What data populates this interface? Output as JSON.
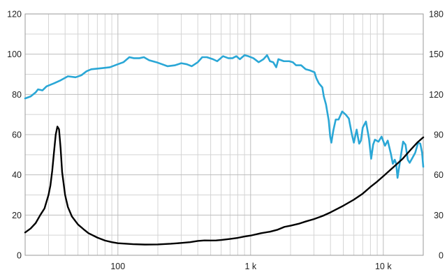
{
  "chart_data": {
    "type": "line",
    "title": "",
    "xlabel": "",
    "ylabel": "",
    "x_scale": "log",
    "xlim": [
      20,
      20000
    ],
    "ylim_left": [
      0,
      120
    ],
    "ylim_right": [
      0,
      180
    ],
    "grid": true,
    "legend": "none",
    "x_ticks": [
      {
        "value": 100,
        "label": "100"
      },
      {
        "value": 1000,
        "label": "1 k"
      },
      {
        "value": 10000,
        "label": "10 k"
      }
    ],
    "y_left_ticks": [
      {
        "value": 0,
        "label": "0"
      },
      {
        "value": 20,
        "label": "20"
      },
      {
        "value": 40,
        "label": "40"
      },
      {
        "value": 60,
        "label": "60"
      },
      {
        "value": 80,
        "label": "80"
      },
      {
        "value": 100,
        "label": "100"
      },
      {
        "value": 120,
        "label": "120"
      }
    ],
    "y_right_ticks": [
      {
        "value": 0,
        "label": "0"
      },
      {
        "value": 30,
        "label": "30"
      },
      {
        "value": 60,
        "label": "60"
      },
      {
        "value": 90,
        "label": "90"
      },
      {
        "value": 120,
        "label": "120"
      },
      {
        "value": 150,
        "label": "150"
      },
      {
        "value": 180,
        "label": "180"
      }
    ],
    "series": [
      {
        "axis": "left",
        "color": "#2aa7d6",
        "points": [
          [
            20,
            78
          ],
          [
            22,
            79
          ],
          [
            24,
            81
          ],
          [
            25,
            82.5
          ],
          [
            27,
            82
          ],
          [
            29,
            84
          ],
          [
            33,
            85.5
          ],
          [
            37,
            87
          ],
          [
            42,
            89
          ],
          [
            48,
            88.5
          ],
          [
            53,
            89.5
          ],
          [
            58,
            91.5
          ],
          [
            63,
            92.5
          ],
          [
            75,
            93
          ],
          [
            87,
            93.5
          ],
          [
            100,
            95
          ],
          [
            110,
            96
          ],
          [
            122,
            98.5
          ],
          [
            132,
            98
          ],
          [
            145,
            98
          ],
          [
            157,
            98.5
          ],
          [
            172,
            97
          ],
          [
            195,
            96
          ],
          [
            215,
            95
          ],
          [
            237,
            94
          ],
          [
            270,
            94.5
          ],
          [
            300,
            95.5
          ],
          [
            330,
            95
          ],
          [
            360,
            94
          ],
          [
            400,
            96
          ],
          [
            432,
            98.5
          ],
          [
            468,
            98.5
          ],
          [
            520,
            97.5
          ],
          [
            560,
            96.5
          ],
          [
            620,
            99
          ],
          [
            680,
            98
          ],
          [
            730,
            98
          ],
          [
            780,
            99
          ],
          [
            830,
            97.5
          ],
          [
            900,
            99.5
          ],
          [
            960,
            99
          ],
          [
            1050,
            98
          ],
          [
            1150,
            96
          ],
          [
            1250,
            97.5
          ],
          [
            1330,
            99.5
          ],
          [
            1400,
            96.5
          ],
          [
            1480,
            96
          ],
          [
            1560,
            93.5
          ],
          [
            1620,
            97.5
          ],
          [
            1780,
            96.5
          ],
          [
            1950,
            96.5
          ],
          [
            2080,
            96
          ],
          [
            2200,
            94.5
          ],
          [
            2400,
            94.5
          ],
          [
            2600,
            92.5
          ],
          [
            2780,
            92
          ],
          [
            3030,
            91
          ],
          [
            3130,
            88
          ],
          [
            3270,
            85.5
          ],
          [
            3470,
            83.5
          ],
          [
            3560,
            79
          ],
          [
            3700,
            75
          ],
          [
            3880,
            67
          ],
          [
            3980,
            59
          ],
          [
            4060,
            56
          ],
          [
            4200,
            62
          ],
          [
            4380,
            67.5
          ],
          [
            4600,
            67.5
          ],
          [
            4900,
            71.5
          ],
          [
            5200,
            70
          ],
          [
            5500,
            68
          ],
          [
            5800,
            60
          ],
          [
            6000,
            56
          ],
          [
            6180,
            60
          ],
          [
            6300,
            62.5
          ],
          [
            6430,
            59
          ],
          [
            6580,
            55.5
          ],
          [
            6780,
            57
          ],
          [
            7000,
            63.5
          ],
          [
            7400,
            66.5
          ],
          [
            7800,
            58
          ],
          [
            8100,
            48
          ],
          [
            8380,
            55
          ],
          [
            8650,
            57.5
          ],
          [
            9200,
            56.5
          ],
          [
            9700,
            59
          ],
          [
            10300,
            54.5
          ],
          [
            10800,
            57
          ],
          [
            11400,
            50.5
          ],
          [
            11800,
            45.5
          ],
          [
            12200,
            47.5
          ],
          [
            12500,
            45.5
          ],
          [
            12800,
            38.5
          ],
          [
            13100,
            43
          ],
          [
            13600,
            50
          ],
          [
            14100,
            56.5
          ],
          [
            14700,
            55
          ],
          [
            15300,
            47.5
          ],
          [
            15800,
            46
          ],
          [
            16600,
            48.5
          ],
          [
            17400,
            51
          ],
          [
            18300,
            56
          ],
          [
            19000,
            55.5
          ],
          [
            19600,
            51
          ],
          [
            20000,
            44
          ]
        ]
      },
      {
        "axis": "right",
        "color": "#000000",
        "points": [
          [
            20,
            17
          ],
          [
            22,
            20
          ],
          [
            24,
            24
          ],
          [
            26,
            30
          ],
          [
            28,
            35
          ],
          [
            30,
            45
          ],
          [
            31,
            52
          ],
          [
            32,
            63
          ],
          [
            33,
            77
          ],
          [
            34,
            90
          ],
          [
            35,
            96
          ],
          [
            36,
            94
          ],
          [
            37,
            80
          ],
          [
            38,
            62
          ],
          [
            40,
            45
          ],
          [
            42,
            36
          ],
          [
            45,
            29
          ],
          [
            50,
            23
          ],
          [
            55,
            19.5
          ],
          [
            60,
            16.5
          ],
          [
            70,
            13.2
          ],
          [
            80,
            11
          ],
          [
            90,
            9.8
          ],
          [
            100,
            9
          ],
          [
            130,
            8.3
          ],
          [
            160,
            8
          ],
          [
            200,
            8.1
          ],
          [
            250,
            8.6
          ],
          [
            300,
            9.2
          ],
          [
            350,
            9.8
          ],
          [
            400,
            10.7
          ],
          [
            450,
            11.1
          ],
          [
            500,
            11
          ],
          [
            550,
            11.1
          ],
          [
            600,
            11.4
          ],
          [
            700,
            12.2
          ],
          [
            800,
            13
          ],
          [
            900,
            14
          ],
          [
            1000,
            14.7
          ],
          [
            1200,
            16.5
          ],
          [
            1400,
            17.6
          ],
          [
            1600,
            19.1
          ],
          [
            1800,
            21.2
          ],
          [
            2000,
            22.1
          ],
          [
            2300,
            23.5
          ],
          [
            2600,
            25.2
          ],
          [
            3000,
            27
          ],
          [
            3500,
            29.4
          ],
          [
            4000,
            32
          ],
          [
            5000,
            37
          ],
          [
            6000,
            41.5
          ],
          [
            7000,
            46
          ],
          [
            8000,
            51
          ],
          [
            9000,
            55
          ],
          [
            10000,
            59
          ],
          [
            12000,
            66
          ],
          [
            14000,
            72
          ],
          [
            16000,
            78.5
          ],
          [
            18000,
            84
          ],
          [
            20000,
            88
          ]
        ]
      }
    ]
  }
}
